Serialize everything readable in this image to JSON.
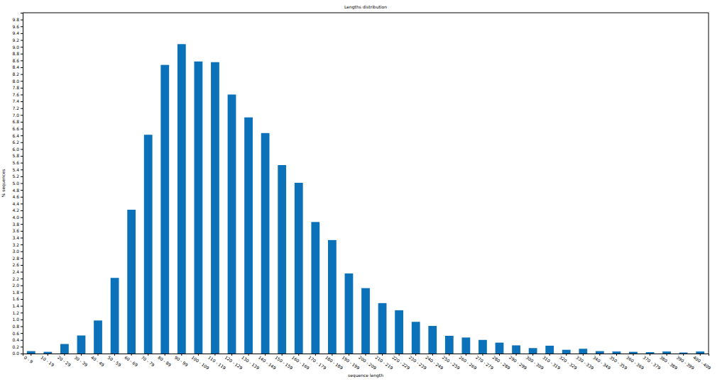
{
  "chart_data": {
    "type": "bar",
    "title": "Lengths distribution",
    "x_label": "sequence length",
    "y_label": "% sequences",
    "categories": [
      "0 - 9",
      "10 - 19",
      "20 - 29",
      "30 - 39",
      "40 - 49",
      "50 - 59",
      "60 - 69",
      "70 - 79",
      "80 - 89",
      "90 - 99",
      "100 - 109",
      "110 - 119",
      "120 - 129",
      "130 - 139",
      "140 - 149",
      "150 - 159",
      "160 - 169",
      "170 - 179",
      "180 - 189",
      "190 - 199",
      "200 - 209",
      "210 - 219",
      "220 - 229",
      "230 - 239",
      "240 - 249",
      "250 - 259",
      "260 - 269",
      "270 - 279",
      "280 - 289",
      "290 - 299",
      "300 - 309",
      "310 - 319",
      "320 - 329",
      "330 - 339",
      "340 - 349",
      "350 - 359",
      "360 - 369",
      "370 - 379",
      "380 - 389",
      "390 - 399",
      "400 - 409"
    ],
    "values": [
      0.07,
      0.05,
      0.28,
      0.53,
      0.97,
      2.22,
      4.22,
      6.42,
      8.47,
      9.08,
      8.57,
      8.55,
      7.6,
      6.93,
      6.47,
      5.53,
      5.01,
      3.86,
      3.33,
      2.35,
      1.92,
      1.48,
      1.27,
      0.93,
      0.81,
      0.52,
      0.47,
      0.4,
      0.32,
      0.24,
      0.16,
      0.23,
      0.11,
      0.14,
      0.07,
      0.06,
      0.05,
      0.04,
      0.06,
      0.03,
      0.06
    ],
    "color": "#0b72b9",
    "ylim": [
      0,
      10
    ],
    "yticks": [
      {
        "value": 0,
        "label": "0.0"
      },
      0.2,
      0.4,
      0.6,
      0.8,
      {
        "value": 1,
        "label": "1.0"
      },
      1.2,
      1.4,
      1.6,
      1.8,
      {
        "value": 2,
        "label": "2.0"
      },
      2.2,
      2.4,
      2.6,
      2.8,
      {
        "value": 3,
        "label": "3.0"
      },
      3.2,
      3.4,
      3.6,
      3.8,
      {
        "value": 4,
        "label": "4.0"
      },
      4.2,
      4.4,
      4.6,
      4.8,
      {
        "value": 5,
        "label": "5.0"
      },
      5.2,
      5.4,
      5.6,
      5.8,
      {
        "value": 6,
        "label": "6.0"
      },
      6.2,
      6.4,
      6.6,
      6.8,
      {
        "value": 7,
        "label": "7.0"
      },
      7.2,
      7.4,
      7.6,
      7.8,
      {
        "value": 8,
        "label": "8.0"
      },
      8.2,
      8.4,
      8.6,
      8.8,
      {
        "value": 9,
        "label": "9.0"
      },
      9.2,
      9.4,
      9.6,
      9.8
    ],
    "grid": false
  }
}
